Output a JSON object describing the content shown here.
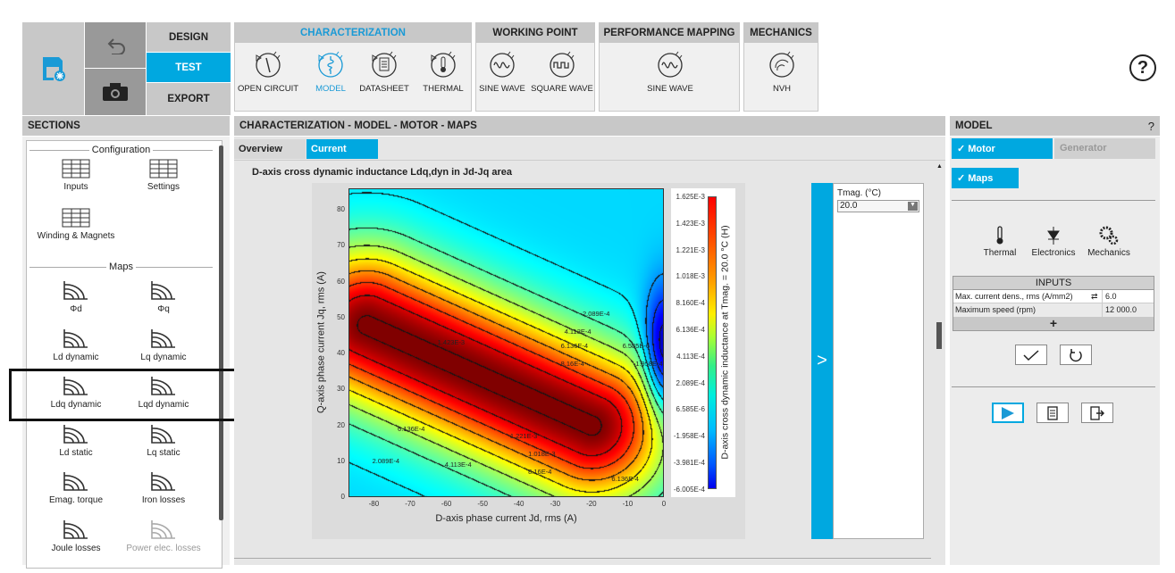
{
  "toolbar": {
    "modes": [
      "DESIGN",
      "TEST",
      "EXPORT"
    ],
    "active_mode": "TEST",
    "groups": [
      {
        "title": "CHARACTERIZATION",
        "tools": [
          "OPEN CIRCUIT",
          "MODEL",
          "DATASHEET",
          "THERMAL"
        ],
        "active": "MODEL"
      },
      {
        "title": "WORKING POINT",
        "tools": [
          "SINE WAVE",
          "SQUARE WAVE"
        ]
      },
      {
        "title": "PERFORMANCE MAPPING",
        "tools": [
          "SINE WAVE"
        ]
      },
      {
        "title": "MECHANICS",
        "tools": [
          "NVH"
        ]
      }
    ],
    "help": "?"
  },
  "sections": {
    "title": "SECTIONS",
    "configuration_label": "Configuration",
    "config_items": [
      "Inputs",
      "Settings",
      "Winding & Magnets"
    ],
    "maps_label": "Maps",
    "map_items": [
      "Φd",
      "Φq",
      "Ld dynamic",
      "Lq dynamic",
      "Ldq dynamic",
      "Lqd dynamic",
      "Ld static",
      "Lq static",
      "Emag. torque",
      "Iron losses",
      "Joule losses",
      "Power elec. losses"
    ]
  },
  "main": {
    "breadcrumb": "CHARACTERIZATION - MODEL - MOTOR - MAPS",
    "tabs": [
      "Overview",
      "Current"
    ],
    "active_tab": "Current",
    "chart_title": "D-axis cross dynamic inductance Ldq,dyn in Jd-Jq area",
    "tmag_label": "Tmag. (°C)",
    "tmag_value": "20.0",
    "expand": ">"
  },
  "chart_data": {
    "type": "heatmap",
    "title": "D-axis cross dynamic inductance Ldq,dyn in Jd-Jq area",
    "xlabel": "D-axis phase current Jd, rms (A)",
    "ylabel": "Q-axis phase current Jq, rms (A)",
    "colorbar_label": "D-axis cross dynamic inductance at Tmag. = 20.0 °C (H)",
    "xlim": [
      -87,
      0
    ],
    "ylim": [
      0,
      86
    ],
    "xticks": [
      "-80",
      "-70",
      "-60",
      "-50",
      "-40",
      "-30",
      "-20",
      "-10",
      "0"
    ],
    "yticks": [
      "0",
      "10",
      "20",
      "30",
      "40",
      "50",
      "60",
      "70",
      "80"
    ],
    "colorbar_ticks": [
      "1.625E-3",
      "1.423E-3",
      "1.221E-3",
      "1.018E-3",
      "8.160E-4",
      "6.136E-4",
      "4.113E-4",
      "2.089E-4",
      "6.585E-6",
      "-1.958E-4",
      "-3.981E-4",
      "-6.005E-4"
    ],
    "zlim": [
      -0.0006005,
      0.001625
    ],
    "contour_labels": [
      {
        "text": "1.423E-3",
        "x": -58,
        "y": 43
      },
      {
        "text": "1.221E-3",
        "x": -38,
        "y": 17
      },
      {
        "text": "1.018E-3",
        "x": -33,
        "y": 12
      },
      {
        "text": "8.16E-4",
        "x": -33,
        "y": 7
      },
      {
        "text": "8.16E-4",
        "x": -24,
        "y": 37
      },
      {
        "text": "6.136E-4",
        "x": -24,
        "y": 42
      },
      {
        "text": "4.113E-4",
        "x": -23,
        "y": 46
      },
      {
        "text": "2.089E-4",
        "x": -18,
        "y": 51
      },
      {
        "text": "6.585E-6",
        "x": -7,
        "y": 42
      },
      {
        "text": "-1.958E-4",
        "x": -4,
        "y": 37
      },
      {
        "text": "6.136E-4",
        "x": -69,
        "y": 19
      },
      {
        "text": "2.089E-4",
        "x": -76,
        "y": 10
      },
      {
        "text": "4.113E-4",
        "x": -56,
        "y": 9
      },
      {
        "text": "6.136E-4",
        "x": -10,
        "y": 5
      }
    ]
  },
  "model": {
    "title": "MODEL",
    "help": "?",
    "motor": "✓ Motor",
    "generator": "Generator",
    "maps": "✓ Maps",
    "tools": [
      "Thermal",
      "Electronics",
      "Mechanics"
    ],
    "inputs_title": "INPUTS",
    "inputs": [
      {
        "label": "Max. current dens., rms (A/mm2)",
        "value": "6.0"
      },
      {
        "label": "Maximum speed (rpm)",
        "value": "12 000.0"
      }
    ],
    "add": "+"
  }
}
